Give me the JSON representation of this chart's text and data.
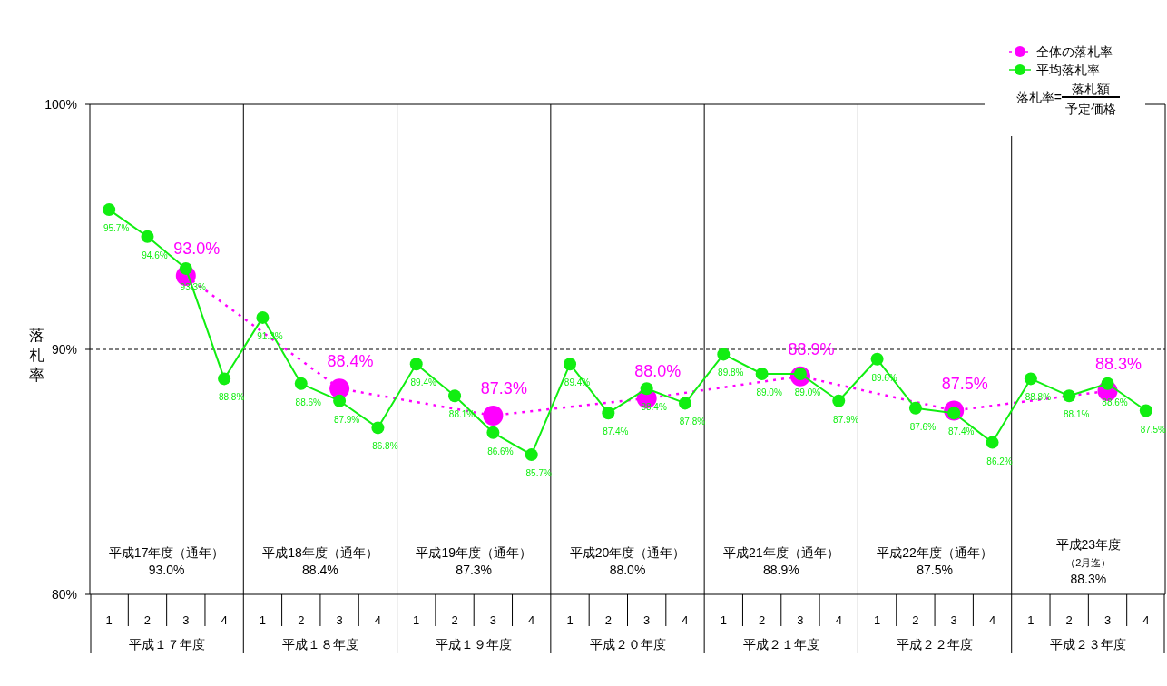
{
  "chart_data": {
    "type": "line",
    "ylabel": "落札率",
    "categories": [
      "1",
      "2",
      "3",
      "4",
      "1",
      "2",
      "3",
      "4",
      "1",
      "2",
      "3",
      "4",
      "1",
      "2",
      "3",
      "4",
      "1",
      "2",
      "3",
      "4",
      "1",
      "2",
      "3",
      "4",
      "1",
      "2",
      "3",
      "4"
    ],
    "ylim": [
      80,
      100
    ],
    "yticks": [
      {
        "value": 80,
        "label": "80%"
      },
      {
        "value": 90,
        "label": "90%"
      },
      {
        "value": 100,
        "label": "100%"
      }
    ],
    "ref_lines": [
      {
        "axis": "y",
        "value": 90,
        "color": "#000000",
        "line_style": "dashed"
      }
    ],
    "legend": "top right",
    "series": [
      {
        "name": "全体の落札率",
        "color": "#ff00ff",
        "line_style": "dotted",
        "marker": "circle",
        "values": [
          null,
          null,
          93.0,
          null,
          null,
          null,
          88.4,
          null,
          null,
          null,
          87.3,
          null,
          null,
          null,
          88.0,
          null,
          null,
          null,
          88.9,
          null,
          null,
          null,
          87.5,
          null,
          null,
          null,
          88.3,
          null
        ],
        "value_labels": [
          null,
          null,
          "93.0%",
          null,
          null,
          null,
          "88.4%",
          null,
          null,
          null,
          "87.3%",
          null,
          null,
          null,
          "88.0%",
          null,
          null,
          null,
          "88.9%",
          null,
          null,
          null,
          "87.5%",
          null,
          null,
          null,
          "88.3%",
          null
        ]
      },
      {
        "name": "平均落札率",
        "color": "#11ee11",
        "line_style": "solid",
        "marker": "circle",
        "values": [
          95.7,
          94.6,
          93.3,
          88.8,
          91.3,
          88.6,
          87.9,
          86.8,
          89.4,
          88.1,
          86.6,
          85.7,
          89.4,
          87.4,
          88.4,
          87.8,
          89.8,
          89.0,
          89.0,
          87.9,
          89.6,
          87.6,
          87.4,
          86.2,
          88.8,
          88.1,
          88.6,
          87.5
        ],
        "value_labels": [
          "95.7%",
          "94.6%",
          "93.3%",
          "88.8%",
          "91.3%",
          "88.6%",
          "87.9%",
          "86.8%",
          "89.4%",
          "88.1%",
          "86.6%",
          "85.7%",
          "89.4%",
          "87.4%",
          "88.4%",
          "87.8%",
          "89.8%",
          "89.0%",
          "89.0%",
          "87.9%",
          "89.6%",
          "87.6%",
          "87.4%",
          "86.2%",
          "88.8%",
          "88.1%",
          "88.6%",
          "87.5%"
        ]
      }
    ],
    "annotations": [
      "落札率=",
      "落札額",
      "予定価格",
      "平成17年度（通年）",
      "93.0%",
      "平成１７年度",
      "平成18年度（通年）",
      "88.4%",
      "平成１８年度",
      "平成19年度（通年）",
      "87.3%",
      "平成１９年度",
      "平成20年度（通年）",
      "88.0%",
      "平成２０年度",
      "平成21年度（通年）",
      "88.9%",
      "平成２１年度",
      "平成22年度（通年）",
      "87.5%",
      "平成２２年度",
      "平成23年度",
      "88.3%",
      "平成２３年度",
      "（2月迄）"
    ]
  }
}
